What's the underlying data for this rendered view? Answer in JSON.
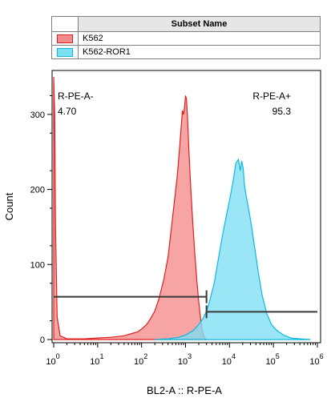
{
  "legend": {
    "header": "Subset Name",
    "entries": [
      {
        "name": "K562",
        "fill": "#f48b8b",
        "stroke": "#e02020"
      },
      {
        "name": "K562-ROR1",
        "fill": "#7ddff4",
        "stroke": "#10b8e0"
      }
    ]
  },
  "chart_data": {
    "type": "area",
    "title": "",
    "xlabel": "BL2-A :: R-PE-A",
    "ylabel": "Count",
    "x_scale": "log",
    "xlim": [
      1,
      1000000
    ],
    "ylim": [
      0,
      350
    ],
    "x_ticks": [
      {
        "base": "10",
        "exp": "0"
      },
      {
        "base": "10",
        "exp": "1"
      },
      {
        "base": "10",
        "exp": "2"
      },
      {
        "base": "10",
        "exp": "3"
      },
      {
        "base": "10",
        "exp": "4"
      },
      {
        "base": "10",
        "exp": "5"
      },
      {
        "base": "10",
        "exp": "6"
      }
    ],
    "y_ticks": [
      0,
      100,
      200,
      300
    ],
    "series": [
      {
        "name": "K562",
        "fill": "#f48b8b",
        "stroke": "#e02020",
        "x": [
          1,
          1.05,
          1.1,
          1.2,
          1.4,
          2,
          5,
          10,
          20,
          40,
          60,
          80,
          100,
          130,
          160,
          200,
          250,
          320,
          400,
          480,
          560,
          640,
          720,
          800,
          850,
          900,
          950,
          1000,
          1050,
          1100,
          1200,
          1320,
          1450,
          1600,
          1800,
          2000,
          2200,
          2400,
          2600,
          2900
        ],
        "y": [
          350,
          300,
          150,
          30,
          5,
          1,
          1,
          2,
          3,
          5,
          8,
          10,
          14,
          20,
          28,
          38,
          55,
          80,
          110,
          150,
          185,
          215,
          250,
          285,
          305,
          300,
          310,
          325,
          320,
          300,
          250,
          200,
          160,
          120,
          80,
          50,
          28,
          12,
          4,
          0
        ]
      },
      {
        "name": "K562-ROR1",
        "fill": "#7ddff4",
        "stroke": "#10b8e0",
        "x": [
          200,
          400,
          700,
          1000,
          1500,
          2000,
          2500,
          3000,
          3500,
          4500,
          5500,
          7000,
          8500,
          10000,
          12000,
          14000,
          16000,
          17500,
          19000,
          20500,
          22000,
          25000,
          28000,
          32000,
          38000,
          45000,
          55000,
          70000,
          90000,
          120000,
          170000,
          250000,
          400000,
          700000
        ],
        "y": [
          0,
          1,
          3,
          6,
          12,
          20,
          28,
          38,
          50,
          75,
          105,
          140,
          165,
          185,
          210,
          235,
          240,
          225,
          238,
          228,
          205,
          185,
          170,
          150,
          120,
          90,
          60,
          35,
          20,
          12,
          6,
          2,
          1,
          0
        ]
      }
    ],
    "gates": [
      {
        "name": "R-PE-A-",
        "value": "4.70",
        "x_start": 1,
        "x_end": 3000,
        "y": 57,
        "label_position": "top-left"
      },
      {
        "name": "R-PE-A+",
        "value": "95.3",
        "x_start": 3000,
        "x_end": 1000000,
        "y": 37,
        "label_position": "top-right"
      }
    ]
  }
}
